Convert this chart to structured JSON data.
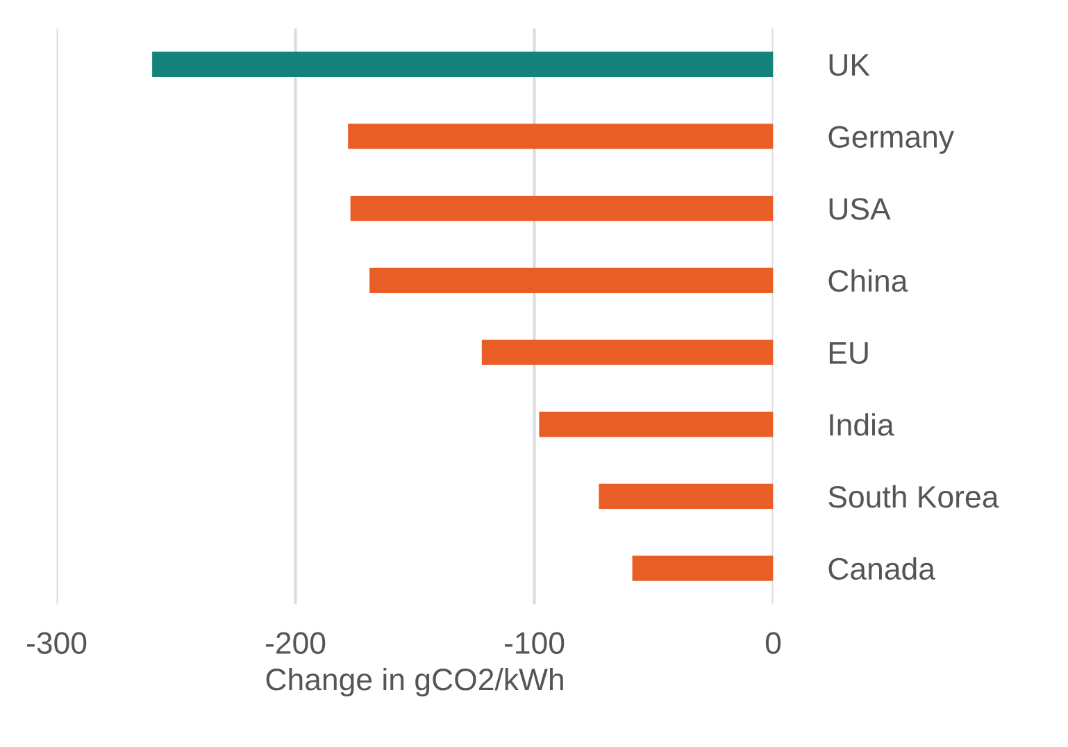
{
  "chart_data": {
    "type": "bar",
    "orientation": "horizontal",
    "xlabel": "Change in gCO2/kWh",
    "categories": [
      "UK",
      "Germany",
      "USA",
      "China",
      "EU",
      "India",
      "South Korea",
      "Canada"
    ],
    "values": [
      -260,
      -178,
      -177,
      -169,
      -122,
      -98,
      -73,
      -59
    ],
    "colors": [
      "#14837b",
      "#e95d26",
      "#e95d26",
      "#e95d26",
      "#e95d26",
      "#e95d26",
      "#e95d26",
      "#e95d26"
    ],
    "xlim": [
      -300,
      0
    ],
    "xticks": [
      -300,
      -200,
      -100,
      0
    ],
    "grid": "x"
  }
}
